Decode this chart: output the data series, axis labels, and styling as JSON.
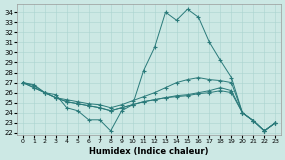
{
  "xlabel": "Humidex (Indice chaleur)",
  "bg_color": "#cce8e4",
  "grid_color": "#aad4d0",
  "line_color": "#2a7a7a",
  "xlim": [
    -0.5,
    23.5
  ],
  "ylim": [
    21.8,
    34.8
  ],
  "yticks": [
    22,
    23,
    24,
    25,
    26,
    27,
    28,
    29,
    30,
    31,
    32,
    33,
    34
  ],
  "xticks": [
    0,
    1,
    2,
    3,
    4,
    5,
    6,
    7,
    8,
    9,
    10,
    11,
    12,
    13,
    14,
    15,
    16,
    17,
    18,
    19,
    20,
    21,
    22,
    23
  ],
  "series": [
    [
      27.0,
      26.8,
      26.0,
      25.8,
      24.5,
      24.2,
      23.3,
      23.3,
      22.2,
      24.2,
      24.8,
      28.2,
      30.5,
      34.0,
      33.2,
      34.3,
      33.5,
      31.0,
      29.2,
      27.5,
      24.0,
      23.2,
      22.2,
      23.0
    ],
    [
      27.0,
      26.7,
      26.0,
      25.5,
      25.3,
      25.1,
      24.9,
      24.8,
      24.5,
      24.8,
      25.2,
      25.6,
      26.0,
      26.5,
      27.0,
      27.3,
      27.5,
      27.3,
      27.2,
      27.0,
      24.0,
      23.2,
      22.2,
      23.0
    ],
    [
      27.0,
      26.5,
      26.0,
      25.5,
      25.1,
      24.9,
      24.7,
      24.5,
      24.2,
      24.5,
      24.8,
      25.1,
      25.3,
      25.5,
      25.7,
      25.8,
      26.0,
      26.2,
      26.5,
      26.2,
      24.0,
      23.2,
      22.2,
      23.0
    ],
    [
      27.0,
      26.5,
      26.0,
      25.5,
      25.1,
      24.9,
      24.7,
      24.5,
      24.2,
      24.5,
      24.8,
      25.1,
      25.3,
      25.5,
      25.6,
      25.7,
      25.9,
      26.0,
      26.2,
      26.0,
      24.0,
      23.2,
      22.2,
      23.0
    ]
  ]
}
